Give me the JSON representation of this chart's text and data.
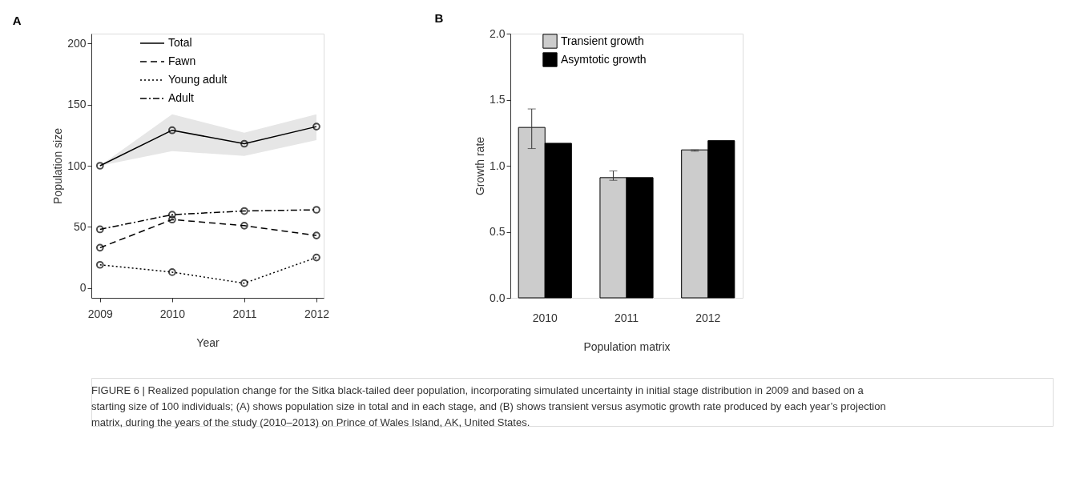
{
  "chart_data": [
    {
      "type": "line",
      "title": "A",
      "xlabel": "Year",
      "ylabel": "Population size",
      "x": [
        2009,
        2010,
        2011,
        2012
      ],
      "xlim": [
        2008.88,
        2012.1
      ],
      "xticks": [
        2009,
        2010,
        2011,
        2012
      ],
      "ylim": [
        -8,
        208
      ],
      "yticks": [
        0,
        50,
        100,
        150,
        200
      ],
      "marker": "circle",
      "legend": "top",
      "grid": false,
      "series": [
        {
          "name": "Total",
          "color": "#000000",
          "line_style": "solid",
          "values": [
            100,
            129,
            118,
            132
          ],
          "lower": [
            100,
            112,
            108,
            121
          ],
          "upper": [
            100,
            142,
            127,
            142
          ]
        },
        {
          "name": "Fawn",
          "color": "#000000",
          "line_style": "dashed",
          "values": [
            33,
            56,
            51,
            43
          ]
        },
        {
          "name": "Young adult",
          "color": "#000000",
          "line_style": "dotted",
          "values": [
            19,
            13,
            4,
            25
          ]
        },
        {
          "name": "Adult",
          "color": "#000000",
          "line_style": "dashdot",
          "values": [
            48,
            60,
            63,
            64
          ]
        }
      ],
      "annotations": [
        "FIGURE 6 | Realized population change for the Sitka black-tailed deer population, incorporating simulated uncertainty in initial stage distribution in 2009 and based on a starting size of 100 individuals; (A) shows population size in total and in each stage, and (B) shows transient versus asymotic growth rate produced by each year’s projection matrix, during the years of the study (2010–2013) on Prince of Wales Island, AK, United States."
      ]
    },
    {
      "type": "bar",
      "title": "B",
      "xlabel": "Population matrix",
      "ylabel": "Growth rate",
      "categories": [
        "2010",
        "2011",
        "2012"
      ],
      "ylim": [
        0,
        2.0
      ],
      "yticks": [
        {
          "value": 0,
          "label": "0.0"
        },
        {
          "value": 0.5,
          "label": "0.5"
        },
        {
          "value": 1,
          "label": "1.0"
        },
        {
          "value": 1.5,
          "label": "1.5"
        },
        {
          "value": 2,
          "label": "2.0"
        }
      ],
      "legend": "top",
      "grid": false,
      "series": [
        {
          "name": "Transient growth",
          "color": "#cccccc",
          "values": [
            1.29,
            0.91,
            1.12
          ],
          "errors": [
            [
              1.13,
              1.43
            ],
            [
              0.89,
              0.96
            ],
            [
              1.11,
              1.12
            ]
          ]
        },
        {
          "name": "Asymtotic growth",
          "color": "#000000",
          "values": [
            1.17,
            0.91,
            1.19
          ]
        }
      ]
    }
  ]
}
